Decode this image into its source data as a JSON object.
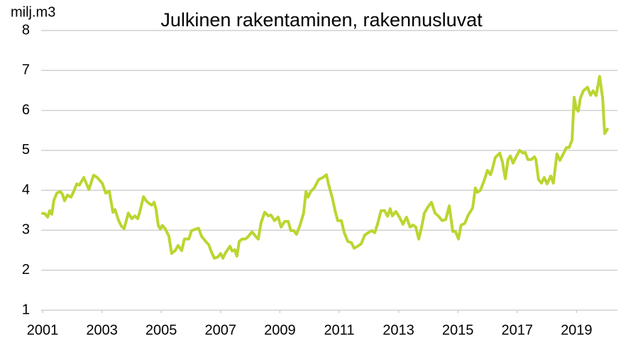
{
  "chart_data": {
    "type": "line",
    "title": "Julkinen rakentaminen, rakennusluvat",
    "y_label": "milj.m3",
    "xlim": [
      2001,
      2020.38
    ],
    "xticks": [
      2001,
      2003,
      2005,
      2007,
      2009,
      2011,
      2013,
      2015,
      2017,
      2019
    ],
    "ylim": [
      1,
      8
    ],
    "yticks": [
      1,
      2,
      3,
      4,
      5,
      6,
      7,
      8
    ],
    "grid": true,
    "x": [
      2001.0,
      2001.07,
      2001.17,
      2001.24,
      2001.31,
      2001.38,
      2001.48,
      2001.6,
      2001.67,
      2001.74,
      2001.84,
      2001.96,
      2002.05,
      2002.15,
      2002.24,
      2002.39,
      2002.56,
      2002.72,
      2002.84,
      2003.01,
      2003.13,
      2003.25,
      2003.37,
      2003.44,
      2003.56,
      2003.66,
      2003.75,
      2003.89,
      2004.01,
      2004.11,
      2004.21,
      2004.3,
      2004.4,
      2004.49,
      2004.59,
      2004.68,
      2004.76,
      2004.83,
      2004.9,
      2004.97,
      2005.04,
      2005.14,
      2005.26,
      2005.35,
      2005.47,
      2005.57,
      2005.69,
      2005.78,
      2005.93,
      2006.02,
      2006.17,
      2006.26,
      2006.36,
      2006.5,
      2006.6,
      2006.69,
      2006.79,
      2006.91,
      2007.0,
      2007.08,
      2007.17,
      2007.27,
      2007.32,
      2007.39,
      2007.48,
      2007.55,
      2007.63,
      2007.72,
      2007.84,
      2007.94,
      2008.06,
      2008.18,
      2008.27,
      2008.37,
      2008.49,
      2008.61,
      2008.7,
      2008.82,
      2008.94,
      2009.04,
      2009.16,
      2009.28,
      2009.37,
      2009.47,
      2009.56,
      2009.68,
      2009.8,
      2009.88,
      2009.95,
      2010.04,
      2010.16,
      2010.31,
      2010.45,
      2010.57,
      2010.64,
      2010.71,
      2010.78,
      2010.86,
      2010.95,
      2011.07,
      2011.17,
      2011.29,
      2011.41,
      2011.5,
      2011.62,
      2011.74,
      2011.86,
      2011.98,
      2012.1,
      2012.2,
      2012.29,
      2012.41,
      2012.53,
      2012.63,
      2012.72,
      2012.79,
      2012.91,
      2013.03,
      2013.15,
      2013.27,
      2013.39,
      2013.49,
      2013.58,
      2013.68,
      2013.78,
      2013.87,
      2013.99,
      2014.11,
      2014.23,
      2014.35,
      2014.47,
      2014.59,
      2014.71,
      2014.83,
      2014.92,
      2015.02,
      2015.11,
      2015.23,
      2015.35,
      2015.5,
      2015.59,
      2015.66,
      2015.76,
      2015.88,
      2016.0,
      2016.1,
      2016.17,
      2016.26,
      2016.41,
      2016.5,
      2016.6,
      2016.69,
      2016.77,
      2016.86,
      2016.98,
      2017.08,
      2017.2,
      2017.27,
      2017.36,
      2017.48,
      2017.58,
      2017.63,
      2017.72,
      2017.82,
      2017.91,
      2018.01,
      2018.13,
      2018.22,
      2018.34,
      2018.44,
      2018.54,
      2018.66,
      2018.75,
      2018.85,
      2018.92,
      2018.99,
      2019.06,
      2019.13,
      2019.23,
      2019.37,
      2019.47,
      2019.56,
      2019.66,
      2019.78,
      2019.88,
      2019.95,
      2020.04
    ],
    "series": [
      {
        "name": "Julkinen rakentaminen",
        "color": "#bcd531",
        "values": [
          3.42,
          3.42,
          3.33,
          3.49,
          3.4,
          3.75,
          3.93,
          3.97,
          3.9,
          3.74,
          3.88,
          3.83,
          3.97,
          4.16,
          4.13,
          4.32,
          4.02,
          4.38,
          4.32,
          4.18,
          3.93,
          3.98,
          3.45,
          3.52,
          3.25,
          3.1,
          3.04,
          3.43,
          3.29,
          3.36,
          3.29,
          3.52,
          3.84,
          3.74,
          3.67,
          3.63,
          3.7,
          3.5,
          3.12,
          3.03,
          3.12,
          3.03,
          2.85,
          2.42,
          2.49,
          2.62,
          2.49,
          2.78,
          2.78,
          2.99,
          3.03,
          3.05,
          2.85,
          2.72,
          2.64,
          2.46,
          2.3,
          2.33,
          2.42,
          2.3,
          2.44,
          2.55,
          2.6,
          2.48,
          2.51,
          2.35,
          2.72,
          2.78,
          2.78,
          2.85,
          2.96,
          2.85,
          2.78,
          3.2,
          3.45,
          3.36,
          3.38,
          3.24,
          3.33,
          3.08,
          3.22,
          3.22,
          2.99,
          2.99,
          2.9,
          3.13,
          3.43,
          3.97,
          3.83,
          3.97,
          4.06,
          4.27,
          4.32,
          4.39,
          4.15,
          3.97,
          3.77,
          3.49,
          3.24,
          3.24,
          2.94,
          2.72,
          2.69,
          2.55,
          2.6,
          2.66,
          2.88,
          2.94,
          2.99,
          2.94,
          3.15,
          3.49,
          3.49,
          3.35,
          3.54,
          3.36,
          3.47,
          3.33,
          3.15,
          3.33,
          3.08,
          3.13,
          3.08,
          2.78,
          3.08,
          3.43,
          3.58,
          3.7,
          3.43,
          3.35,
          3.24,
          3.27,
          3.61,
          2.97,
          2.97,
          2.78,
          3.13,
          3.17,
          3.38,
          3.56,
          4.06,
          3.95,
          4.0,
          4.23,
          4.5,
          4.39,
          4.55,
          4.82,
          4.93,
          4.72,
          4.29,
          4.77,
          4.86,
          4.68,
          4.86,
          5.0,
          4.93,
          4.95,
          4.77,
          4.77,
          4.84,
          4.77,
          4.27,
          4.18,
          4.32,
          4.16,
          4.36,
          4.18,
          4.91,
          4.75,
          4.89,
          5.07,
          5.07,
          5.26,
          6.33,
          6.05,
          5.98,
          6.31,
          6.49,
          6.58,
          6.38,
          6.49,
          6.37,
          6.85,
          6.31,
          5.42,
          5.53
        ]
      }
    ]
  }
}
